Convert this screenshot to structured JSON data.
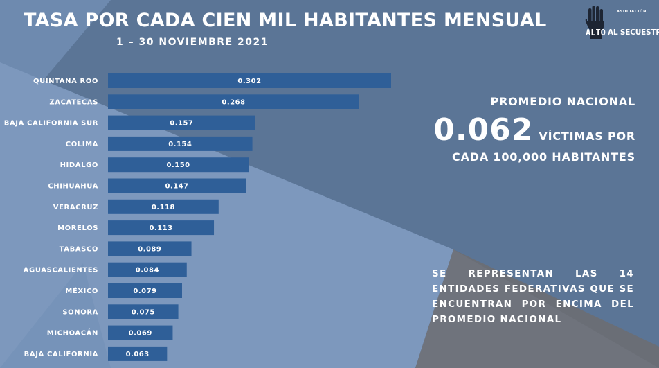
{
  "header": {
    "title": "TASA POR CADA CIEN MIL HABITANTES MENSUAL",
    "subtitle": "1 – 30 NOVIEMBRE 2021"
  },
  "logo": {
    "small_text": "ASOCIACIÓN",
    "alto_text": "ALTO",
    "name_text": "AL SECUESTRO",
    "icon": "raised-hand-icon"
  },
  "colors": {
    "bar": "#2f5f98",
    "text": "#ffffff",
    "bg_light": "#7d98bd",
    "bg_mid": "#5b7596",
    "bg_gray": "#6f737c"
  },
  "chart_data": {
    "type": "bar",
    "orientation": "horizontal",
    "categories": [
      "QUINTANA ROO",
      "ZACATECAS",
      "BAJA CALIFORNIA SUR",
      "COLIMA",
      "HIDALGO",
      "CHIHUAHUA",
      "VERACRUZ",
      "MORELOS",
      "TABASCO",
      "AGUASCALIENTES",
      "MÉXICO",
      "SONORA",
      "MICHOACÁN",
      "BAJA CALIFORNIA"
    ],
    "values": [
      0.302,
      0.268,
      0.157,
      0.154,
      0.15,
      0.147,
      0.118,
      0.113,
      0.089,
      0.084,
      0.079,
      0.075,
      0.069,
      0.063
    ],
    "value_labels": [
      "0.302",
      "0.268",
      "0.157",
      "0.154",
      "0.150",
      "0.147",
      "0.118",
      "0.113",
      "0.089",
      "0.084",
      "0.079",
      "0.075",
      "0.069",
      "0.063"
    ],
    "title": "TASA POR CADA CIEN MIL HABITANTES MENSUAL",
    "xlabel": "",
    "ylabel": "",
    "xlim": [
      0,
      0.302
    ],
    "grid": false,
    "legend": "none"
  },
  "average": {
    "heading": "PROMEDIO NACIONAL",
    "value": "0.062",
    "unit_line1": "VÍCTIMAS POR",
    "unit_line2": "CADA 100,000 HABITANTES"
  },
  "note": {
    "text": "SE REPRESENTAN LAS 14 ENTIDADES FEDERATIVAS QUE SE ENCUENTRAN POR ENCIMA DEL PROMEDIO NACIONAL"
  }
}
